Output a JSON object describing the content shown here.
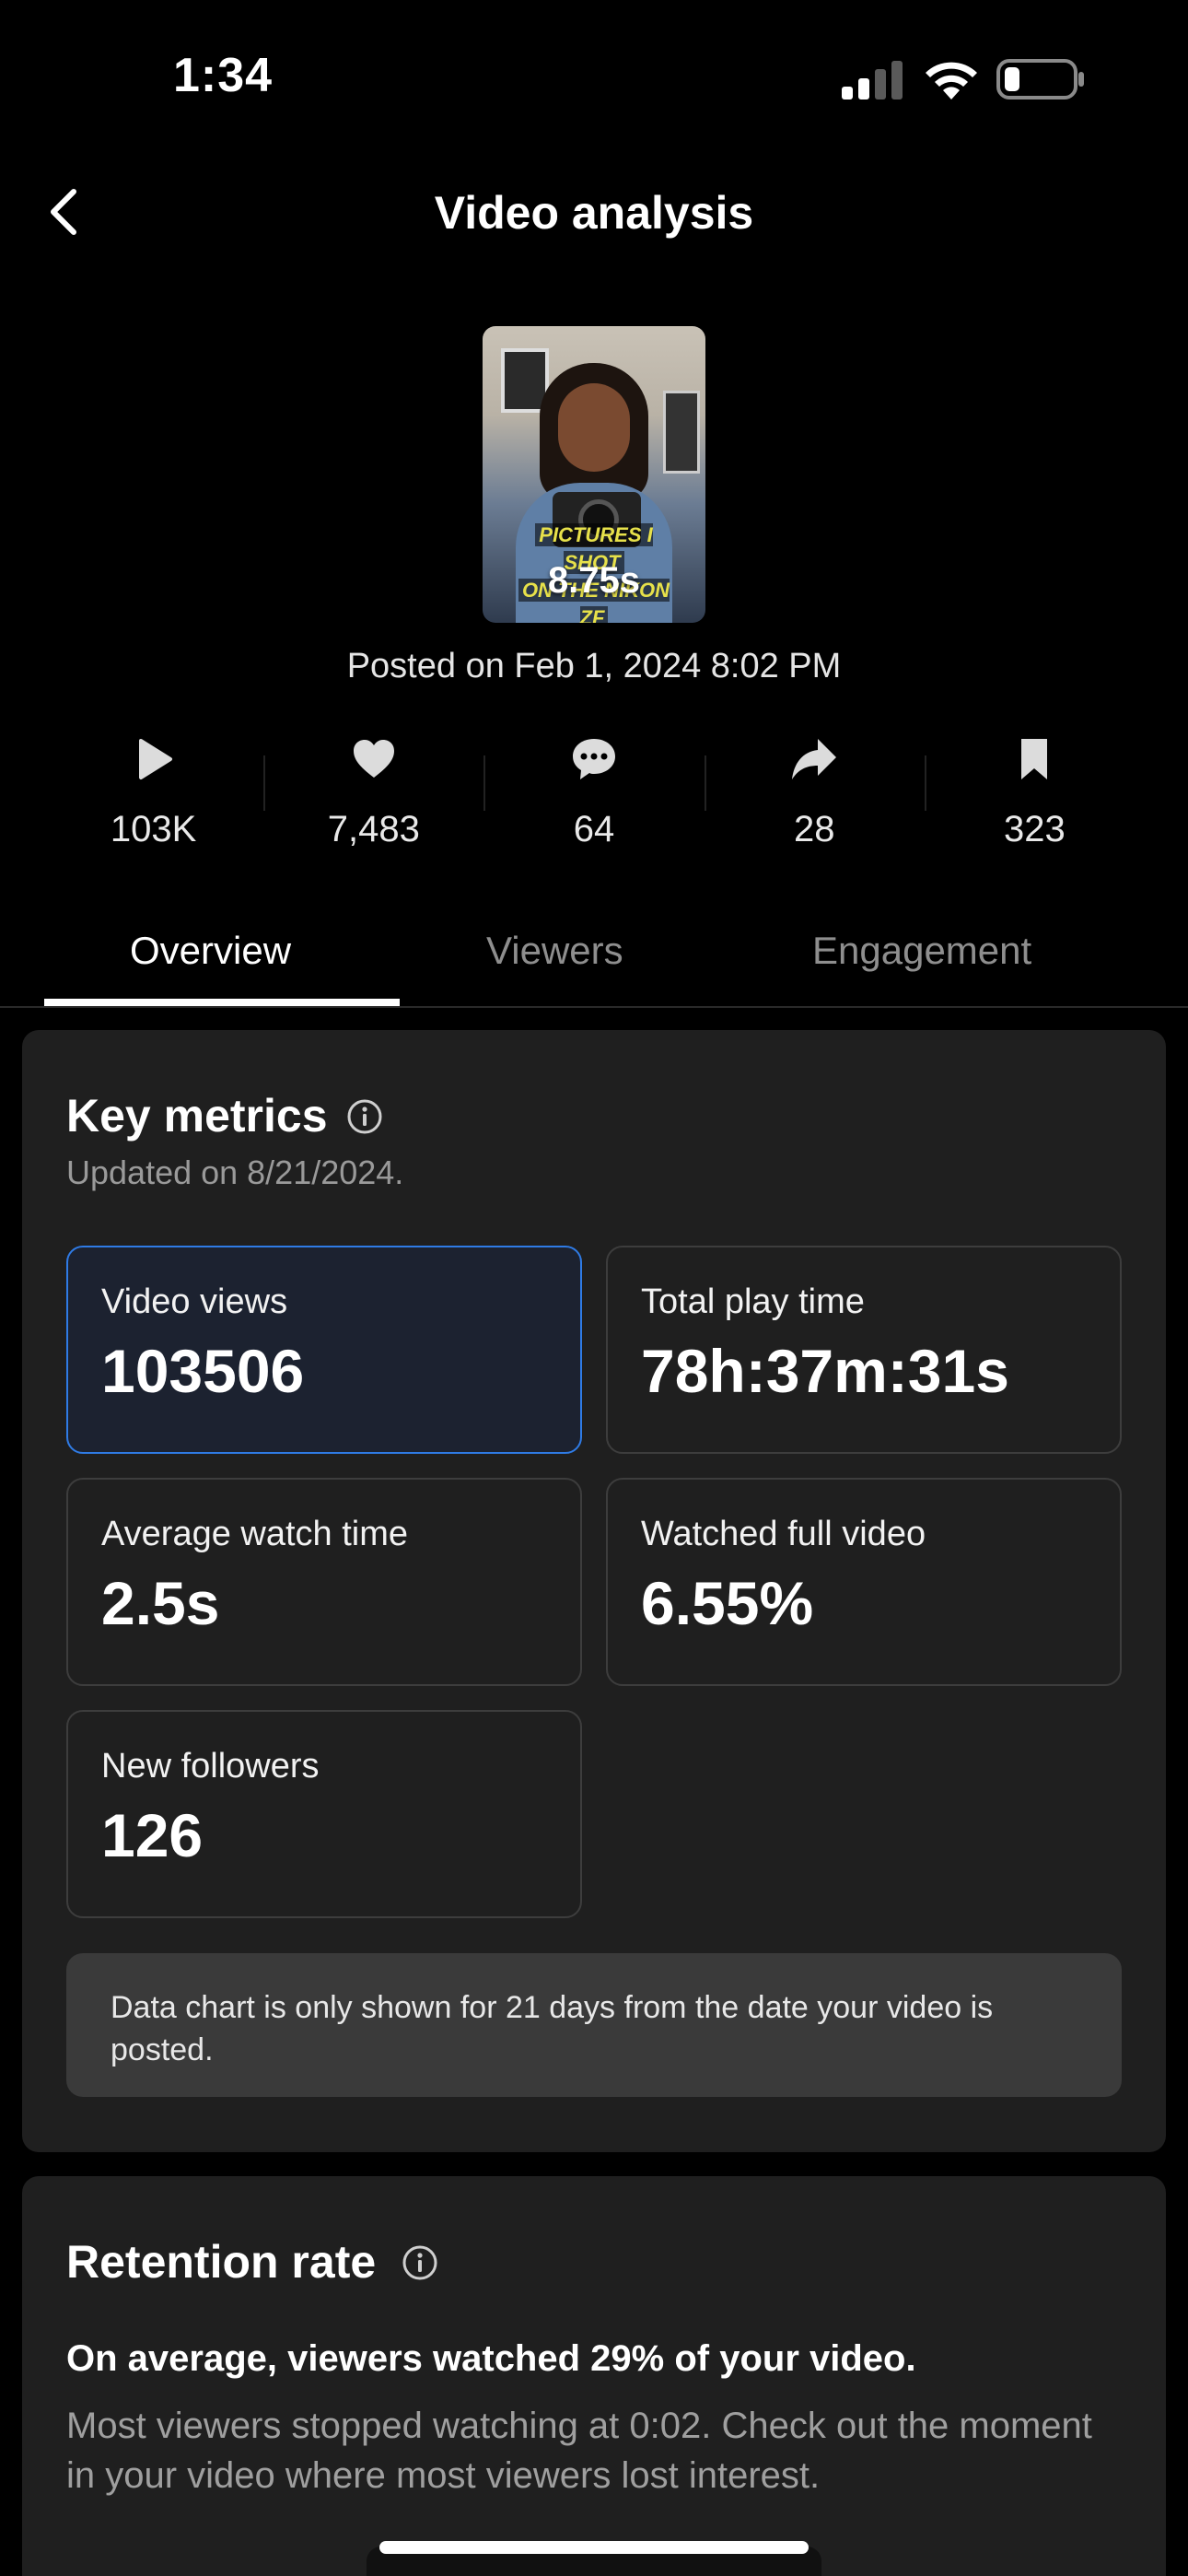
{
  "status_bar": {
    "time": "1:34",
    "icons": [
      "signal-icon",
      "wifi-icon",
      "battery-icon"
    ]
  },
  "header": {
    "title": "Video analysis",
    "back_icon": "chevron-left-icon"
  },
  "video": {
    "thumbnail_caption_line1": "PICTURES I SHOT",
    "thumbnail_caption_line2": "ON THE NIKON ZF",
    "duration": "8.75s",
    "posted": "Posted on Feb 1, 2024 8:02 PM"
  },
  "stats": [
    {
      "icon": "play-icon",
      "value": "103K"
    },
    {
      "icon": "heart-icon",
      "value": "7,483"
    },
    {
      "icon": "comment-icon",
      "value": "64"
    },
    {
      "icon": "share-icon",
      "value": "28"
    },
    {
      "icon": "bookmark-icon",
      "value": "323"
    }
  ],
  "tabs": [
    {
      "label": "Overview",
      "active": true
    },
    {
      "label": "Viewers",
      "active": false
    },
    {
      "label": "Engagement",
      "active": false
    }
  ],
  "key_metrics": {
    "title": "Key metrics",
    "updated": "Updated on 8/21/2024.",
    "metrics": [
      {
        "label": "Video views",
        "value": "103506",
        "selected": true
      },
      {
        "label": "Total play time",
        "value": "78h:37m:31s",
        "selected": false
      },
      {
        "label": "Average watch time",
        "value": "2.5s",
        "selected": false
      },
      {
        "label": "Watched full video",
        "value": "6.55%",
        "selected": false
      },
      {
        "label": "New followers",
        "value": "126",
        "selected": false
      }
    ],
    "note": "Data chart is only shown for 21 days from the date your video is posted."
  },
  "retention": {
    "title": "Retention rate",
    "headline": "On average, viewers watched 29% of your video.",
    "body": "Most viewers stopped watching at 0:02. Check out the moment in your video where most viewers lost interest."
  },
  "colors": {
    "background": "#000000",
    "card": "#1f1f1f",
    "selected_border": "#2f7be5",
    "muted_text": "#9a9a9a"
  }
}
